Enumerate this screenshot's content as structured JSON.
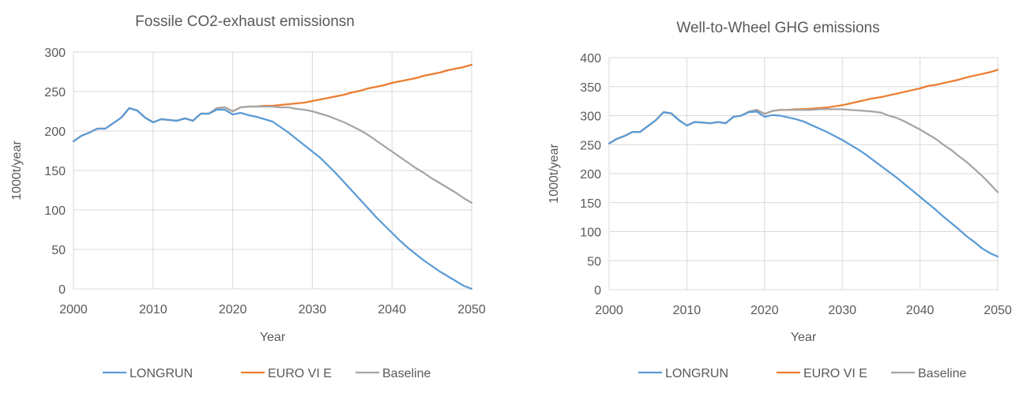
{
  "colors": {
    "longrun": "#5b9bd5",
    "euro": "#ed7d31",
    "baseline": "#a5a5a5"
  },
  "chart_data": [
    {
      "type": "line",
      "title": "Fossile CO2-exhaust emissionsn",
      "xlabel": "Year",
      "ylabel": "1000t/year",
      "xlim": [
        2000,
        2050
      ],
      "ylim": [
        0,
        300
      ],
      "xticks": [
        2000,
        2010,
        2020,
        2030,
        2040,
        2050
      ],
      "yticks": [
        0,
        50,
        100,
        150,
        200,
        250,
        300
      ],
      "grid": true,
      "legend": "bottom",
      "series": [
        {
          "name": "LONGRUN",
          "color": "#5b9bd5",
          "x": [
            2000,
            2001,
            2002,
            2003,
            2004,
            2005,
            2006,
            2007,
            2008,
            2009,
            2010,
            2011,
            2012,
            2013,
            2014,
            2015,
            2016,
            2017,
            2018,
            2019,
            2020,
            2021,
            2022,
            2023,
            2024,
            2025,
            2026,
            2027,
            2028,
            2029,
            2030,
            2031,
            2032,
            2033,
            2034,
            2035,
            2036,
            2037,
            2038,
            2039,
            2040,
            2041,
            2042,
            2043,
            2044,
            2045,
            2046,
            2047,
            2048,
            2049,
            2050
          ],
          "y": [
            187,
            194,
            198,
            203,
            203,
            210,
            217,
            229,
            226,
            217,
            211,
            215,
            214,
            213,
            216,
            213,
            222,
            222,
            227,
            227,
            221,
            223,
            220,
            218,
            215,
            212,
            205,
            198,
            190,
            182,
            174,
            166,
            156,
            146,
            135,
            124,
            113,
            102,
            91,
            81,
            71,
            61,
            52,
            44,
            36,
            29,
            22,
            16,
            10,
            4,
            0
          ]
        },
        {
          "name": "EURO VI E",
          "color": "#ed7d31",
          "x": [
            2000,
            2001,
            2002,
            2003,
            2004,
            2005,
            2006,
            2007,
            2008,
            2009,
            2010,
            2011,
            2012,
            2013,
            2014,
            2015,
            2016,
            2017,
            2018,
            2019,
            2020,
            2021,
            2022,
            2023,
            2024,
            2025,
            2026,
            2027,
            2028,
            2029,
            2030,
            2031,
            2032,
            2033,
            2034,
            2035,
            2036,
            2037,
            2038,
            2039,
            2040,
            2041,
            2042,
            2043,
            2044,
            2045,
            2046,
            2047,
            2048,
            2049,
            2050
          ],
          "y": [
            187,
            194,
            198,
            203,
            203,
            210,
            217,
            229,
            226,
            217,
            211,
            215,
            214,
            213,
            216,
            213,
            222,
            222,
            229,
            230,
            225,
            230,
            231,
            231,
            232,
            232,
            233,
            234,
            235,
            236,
            238,
            240,
            242,
            244,
            246,
            249,
            251,
            254,
            256,
            258,
            261,
            263,
            265,
            267,
            270,
            272,
            274,
            277,
            279,
            281,
            284
          ]
        },
        {
          "name": "Baseline",
          "color": "#a5a5a5",
          "x": [
            2000,
            2001,
            2002,
            2003,
            2004,
            2005,
            2006,
            2007,
            2008,
            2009,
            2010,
            2011,
            2012,
            2013,
            2014,
            2015,
            2016,
            2017,
            2018,
            2019,
            2020,
            2021,
            2022,
            2023,
            2024,
            2025,
            2026,
            2027,
            2028,
            2029,
            2030,
            2031,
            2032,
            2033,
            2034,
            2035,
            2036,
            2037,
            2038,
            2039,
            2040,
            2041,
            2042,
            2043,
            2044,
            2045,
            2046,
            2047,
            2048,
            2049,
            2050
          ],
          "y": [
            187,
            194,
            198,
            203,
            203,
            210,
            217,
            229,
            226,
            217,
            211,
            215,
            214,
            213,
            216,
            213,
            222,
            222,
            229,
            230,
            225,
            230,
            231,
            231,
            231,
            231,
            230,
            230,
            228,
            227,
            225,
            222,
            219,
            215,
            211,
            206,
            201,
            195,
            188,
            181,
            174,
            167,
            160,
            153,
            147,
            140,
            134,
            128,
            122,
            115,
            109
          ]
        }
      ]
    },
    {
      "type": "line",
      "title": "Well-to-Wheel GHG emissions",
      "xlabel": "Year",
      "ylabel": "1000t/year",
      "xlim": [
        2000,
        2050
      ],
      "ylim": [
        0,
        400
      ],
      "xticks": [
        2000,
        2010,
        2020,
        2030,
        2040,
        2050
      ],
      "yticks": [
        0,
        50,
        100,
        150,
        200,
        250,
        300,
        350,
        400
      ],
      "grid": true,
      "legend": "bottom",
      "series": [
        {
          "name": "LONGRUN",
          "color": "#5b9bd5",
          "x": [
            2000,
            2001,
            2002,
            2003,
            2004,
            2005,
            2006,
            2007,
            2008,
            2009,
            2010,
            2011,
            2012,
            2013,
            2014,
            2015,
            2016,
            2017,
            2018,
            2019,
            2020,
            2021,
            2022,
            2023,
            2024,
            2025,
            2026,
            2027,
            2028,
            2029,
            2030,
            2031,
            2032,
            2033,
            2034,
            2035,
            2036,
            2037,
            2038,
            2039,
            2040,
            2041,
            2042,
            2043,
            2044,
            2045,
            2046,
            2047,
            2048,
            2049,
            2050
          ],
          "y": [
            252,
            260,
            265,
            272,
            272,
            282,
            292,
            306,
            304,
            292,
            283,
            289,
            288,
            287,
            289,
            287,
            298,
            300,
            306,
            307,
            298,
            301,
            300,
            297,
            294,
            290,
            284,
            278,
            272,
            265,
            258,
            250,
            242,
            233,
            223,
            213,
            203,
            193,
            182,
            171,
            160,
            149,
            138,
            126,
            115,
            104,
            92,
            82,
            71,
            63,
            57
          ]
        },
        {
          "name": "EURO VI E",
          "color": "#ed7d31",
          "x": [
            2000,
            2001,
            2002,
            2003,
            2004,
            2005,
            2006,
            2007,
            2008,
            2009,
            2010,
            2011,
            2012,
            2013,
            2014,
            2015,
            2016,
            2017,
            2018,
            2019,
            2020,
            2021,
            2022,
            2023,
            2024,
            2025,
            2026,
            2027,
            2028,
            2029,
            2030,
            2031,
            2032,
            2033,
            2034,
            2035,
            2036,
            2037,
            2038,
            2039,
            2040,
            2041,
            2042,
            2043,
            2044,
            2045,
            2046,
            2047,
            2048,
            2049,
            2050
          ],
          "y": [
            252,
            260,
            265,
            272,
            272,
            282,
            292,
            306,
            304,
            292,
            283,
            289,
            288,
            287,
            289,
            287,
            298,
            300,
            307,
            310,
            303,
            308,
            310,
            310,
            311,
            311,
            312,
            313,
            314,
            316,
            318,
            321,
            324,
            327,
            330,
            332,
            335,
            338,
            341,
            344,
            347,
            351,
            353,
            356,
            359,
            362,
            366,
            369,
            372,
            375,
            379
          ]
        },
        {
          "name": "Baseline",
          "color": "#a5a5a5",
          "x": [
            2000,
            2001,
            2002,
            2003,
            2004,
            2005,
            2006,
            2007,
            2008,
            2009,
            2010,
            2011,
            2012,
            2013,
            2014,
            2015,
            2016,
            2017,
            2018,
            2019,
            2020,
            2021,
            2022,
            2023,
            2024,
            2025,
            2026,
            2027,
            2028,
            2029,
            2030,
            2031,
            2032,
            2033,
            2034,
            2035,
            2036,
            2037,
            2038,
            2039,
            2040,
            2041,
            2042,
            2043,
            2044,
            2045,
            2046,
            2047,
            2048,
            2049,
            2050
          ],
          "y": [
            252,
            260,
            265,
            272,
            272,
            282,
            292,
            306,
            304,
            292,
            283,
            289,
            288,
            287,
            289,
            287,
            298,
            300,
            307,
            310,
            303,
            308,
            310,
            310,
            310,
            310,
            310,
            311,
            311,
            311,
            311,
            310,
            309,
            308,
            307,
            305,
            300,
            296,
            290,
            283,
            276,
            268,
            260,
            250,
            241,
            230,
            220,
            208,
            196,
            182,
            168
          ]
        }
      ]
    }
  ]
}
